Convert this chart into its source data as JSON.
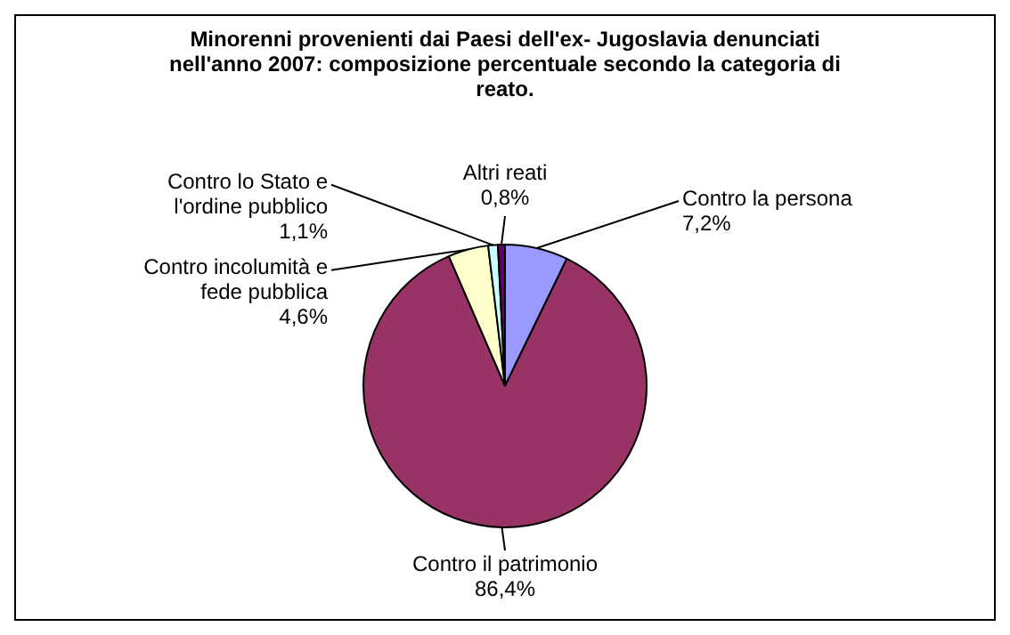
{
  "chart_data": {
    "type": "pie",
    "title": "Minorenni provenienti dai Paesi dell'ex- Jugoslavia  denunciati nell'anno 2007: composizione percentuale secondo la categoria di reato.",
    "categories": [
      "Contro la persona",
      "Contro il patrimonio",
      "Contro incolumità e fede pubblica",
      "Contro lo Stato e l'ordine pubblico",
      "Altri reati"
    ],
    "values": [
      7.2,
      86.4,
      4.6,
      1.1,
      0.8
    ],
    "value_labels": [
      "7,2%",
      "86,4%",
      "4,6%",
      "1,1%",
      "0,8%"
    ],
    "colors": [
      "#9999ff",
      "#993366",
      "#ffffcc",
      "#ccffff",
      "#660066"
    ],
    "legend": false
  }
}
